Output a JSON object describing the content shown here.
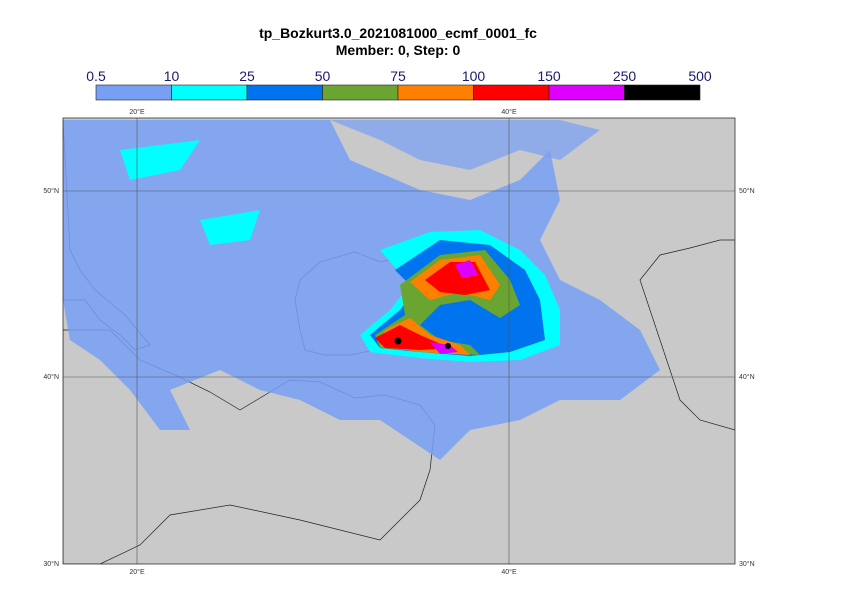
{
  "header": {
    "title": "tp_Bozkurt3.0_2021081000_ecmf_0001_fc",
    "subtitle": "Member: 0, Step: 0"
  },
  "legend": {
    "levels": [
      0.5,
      10,
      25,
      50,
      75,
      100,
      150,
      250,
      500
    ],
    "colors": [
      "#77a0f5",
      "#00ffff",
      "#0073ee",
      "#6aa532",
      "#ff8000",
      "#ff0000",
      "#dd00ff",
      "#000000"
    ]
  },
  "map": {
    "lon_labels": [
      "20°E",
      "40°E"
    ],
    "lat_labels": [
      "50°N",
      "40°N",
      "30°N"
    ]
  }
}
